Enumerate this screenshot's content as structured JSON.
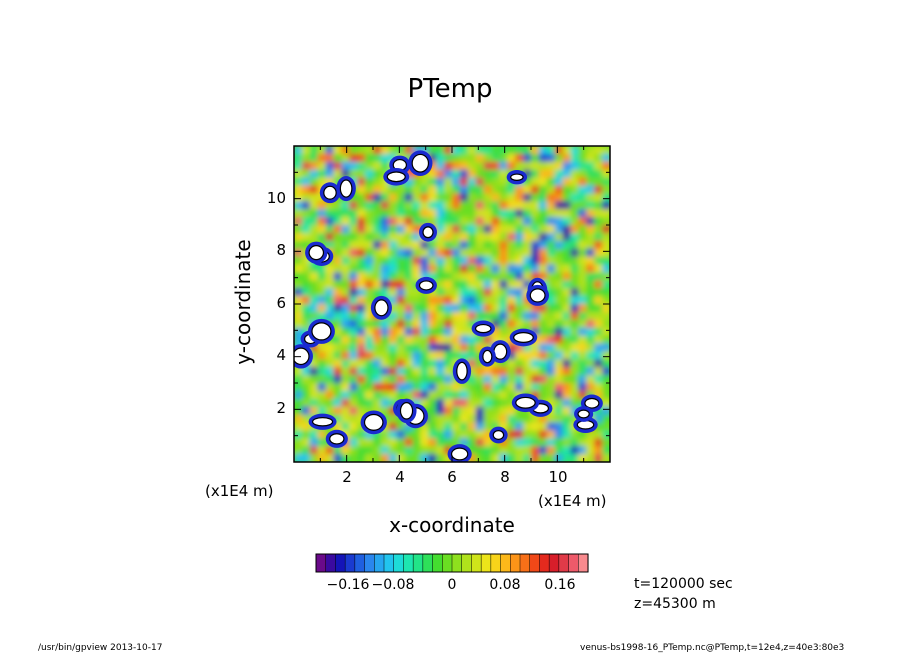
{
  "chart_data": {
    "type": "heatmap",
    "title": "PTemp",
    "xlabel": "x-coordinate",
    "ylabel": "y-coordinate",
    "xlim": [
      0,
      12
    ],
    "ylim": [
      0,
      12
    ],
    "x_ticks": [
      "2",
      "4",
      "6",
      "8",
      "10"
    ],
    "y_ticks": [
      "2",
      "4",
      "6",
      "8",
      "10"
    ],
    "x_unit": "(x1E4 m)",
    "y_unit": "(x1E4 m)",
    "colorbar": {
      "range": [
        -0.22,
        0.22
      ],
      "ticks": [
        "−0.16",
        "−0.08",
        "0",
        "0.08",
        "0.16"
      ],
      "colors": [
        "#6a0a8a",
        "#3a0aa0",
        "#1414b8",
        "#1a3ad0",
        "#1f5fe0",
        "#2a86ee",
        "#26a6f0",
        "#22c4ee",
        "#1edbd8",
        "#1ee6b0",
        "#22e488",
        "#2ee05a",
        "#44dd30",
        "#6ade22",
        "#8ee01e",
        "#b0e21c",
        "#cfe41a",
        "#ece41a",
        "#f8d41a",
        "#fcb81a",
        "#fc9418",
        "#f87018",
        "#f04818",
        "#e42a1e",
        "#d81e2a",
        "#e03a48",
        "#ee5a6a",
        "#f88a8e"
      ]
    }
  },
  "info": {
    "time": "t=120000 sec",
    "height": "z=45300 m"
  },
  "footer": {
    "left": "/usr/bin/gpview   2013-10-17",
    "right": "venus-bs1998-16_PTemp.nc@PTemp,t=12e4,z=40e3:80e3"
  }
}
